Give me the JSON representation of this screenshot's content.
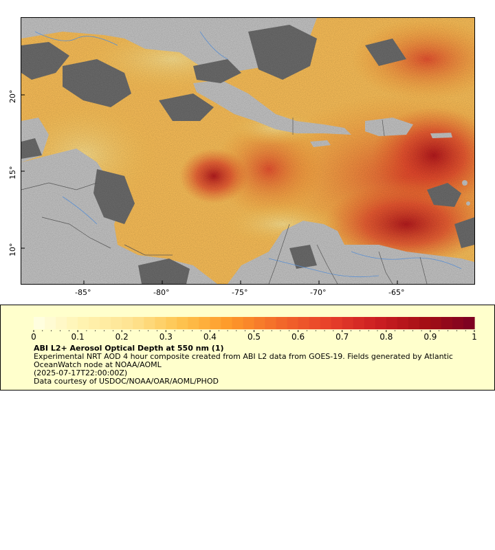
{
  "map": {
    "x_ticks": [
      "-85°",
      "-80°",
      "-75°",
      "-70°",
      "-65°"
    ],
    "y_ticks": [
      "20°",
      "15°",
      "10°"
    ],
    "colors": {
      "land": "#c8c8c8",
      "cloud": "#6e6e6e",
      "borders": "#555555",
      "rivers": "#5b8fd1"
    }
  },
  "legend": {
    "ticks": [
      "0",
      "0.1",
      "0.2",
      "0.3",
      "0.4",
      "0.5",
      "0.6",
      "0.7",
      "0.8",
      "0.9",
      "1"
    ],
    "colormap": [
      "#ffffe5",
      "#fff3b0",
      "#fee391",
      "#fec44f",
      "#fe9929",
      "#f36a2a",
      "#e8412a",
      "#cc1f22",
      "#a50f15",
      "#7a0022"
    ],
    "title": "ABI L2+ Aerosol Optical Depth at 550 nm (1)",
    "description": "Experimental NRT AOD 4 hour composite created from ABI L2 data from GOES-19. Fields generated by Atlantic OceanWatch node at NOAA/AOML",
    "timestamp": "(2025-07-17T22:00:00Z)",
    "credit": "Data courtesy of USDOC/NOAA/OAR/AOML/PHOD"
  }
}
